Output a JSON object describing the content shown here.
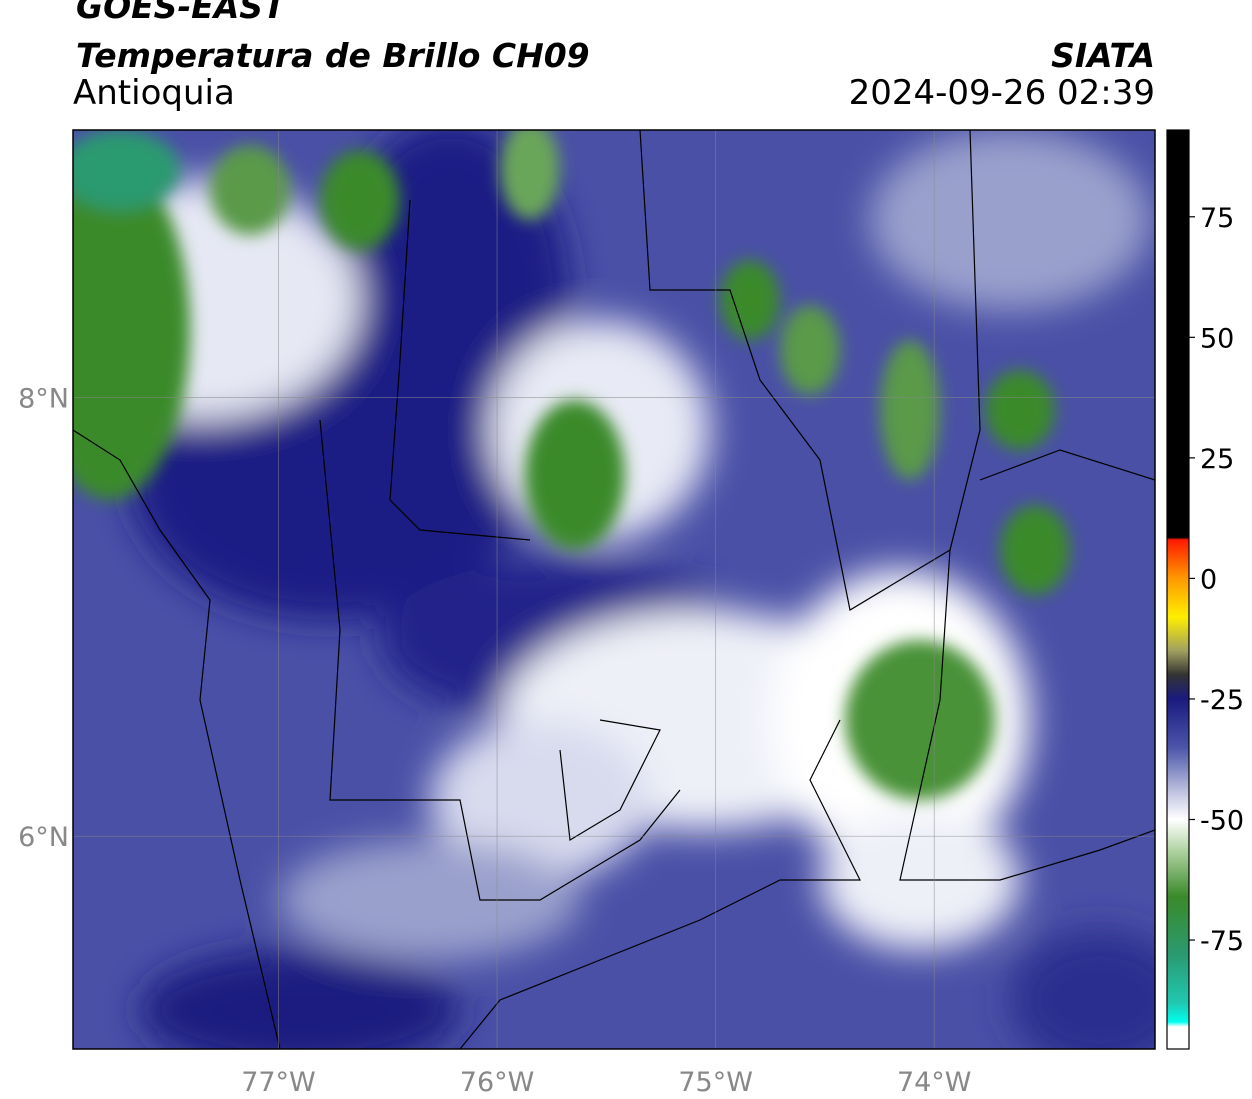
{
  "header": {
    "title": "GOES-EAST",
    "subtitle": "Temperatura de Brillo CH09",
    "region": "Antioquia",
    "agency": "SIATA",
    "datetime": "2024-09-26 02:39"
  },
  "map": {
    "xlim": [
      -77.94,
      -72.99
    ],
    "ylim": [
      5.03,
      9.22
    ],
    "grid": true,
    "xticks": [
      {
        "value": -77,
        "label": "77°W"
      },
      {
        "value": -76,
        "label": "76°W"
      },
      {
        "value": -75,
        "label": "75°W"
      },
      {
        "value": -74,
        "label": "74°W"
      }
    ],
    "yticks": [
      {
        "value": 8,
        "label": "8°N"
      },
      {
        "value": 6,
        "label": "6°N"
      }
    ]
  },
  "colorbar": {
    "lim": [
      -97.6,
      93
    ],
    "ticks": [
      75,
      50,
      25,
      0,
      -25,
      -50,
      -75
    ],
    "colors": [
      {
        "value": 93,
        "color": "#000000"
      },
      {
        "value": 8.5,
        "color": "#000000"
      },
      {
        "value": 8,
        "color": "#ff1a00"
      },
      {
        "value": 0,
        "color": "#ff9900"
      },
      {
        "value": -8,
        "color": "#ffee00"
      },
      {
        "value": -15,
        "color": "#a0a060"
      },
      {
        "value": -20,
        "color": "#333333"
      },
      {
        "value": -25,
        "color": "#1a1a80"
      },
      {
        "value": -35,
        "color": "#4a55a8"
      },
      {
        "value": -45,
        "color": "#c8cbe4"
      },
      {
        "value": -50,
        "color": "#ffffff"
      },
      {
        "value": -56,
        "color": "#b6d6a8"
      },
      {
        "value": -66,
        "color": "#3a8a2a"
      },
      {
        "value": -78,
        "color": "#2a9a70"
      },
      {
        "value": -88,
        "color": "#20c8b0"
      },
      {
        "value": -92,
        "color": "#00ffee"
      },
      {
        "value": -93,
        "color": "#ffffff"
      },
      {
        "value": -97.6,
        "color": "#ffffff"
      }
    ]
  }
}
